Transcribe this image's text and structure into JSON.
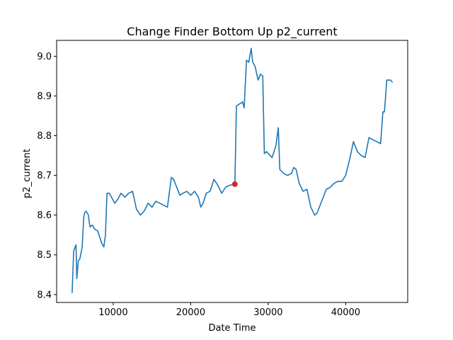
{
  "chart_data": {
    "type": "line",
    "title": "Change Finder Bottom Up p2_current",
    "xlabel": "Date Time",
    "ylabel": "p2_current",
    "xlim": [
      2700,
      48000
    ],
    "ylim": [
      8.38,
      9.04
    ],
    "xticks": [
      10000,
      20000,
      30000,
      40000
    ],
    "xtick_labels": [
      "10000",
      "20000",
      "30000",
      "40000"
    ],
    "yticks": [
      8.4,
      8.5,
      8.6,
      8.7,
      8.8,
      8.9,
      9.0
    ],
    "ytick_labels": [
      "8.4",
      "8.5",
      "8.6",
      "8.7",
      "8.8",
      "8.9",
      "9.0"
    ],
    "grid": false,
    "line_color": "#1f77b4",
    "marker_color": "#d62728",
    "series": [
      {
        "x": [
          4700,
          4900,
          5000,
          5200,
          5300,
          5500,
          5700,
          6000,
          6200,
          6300,
          6500,
          6800,
          7000,
          7300,
          7600,
          8000,
          8500,
          8800,
          9000,
          9200,
          9500,
          10200,
          10600,
          11000,
          11500,
          12000,
          12500,
          13000,
          13500,
          14000,
          14500,
          15000,
          15500,
          16000,
          16500,
          17000,
          17500,
          17800,
          18200,
          18600,
          19000,
          19500,
          20000,
          20500,
          21000,
          21300,
          21600,
          22000,
          22500,
          23000,
          23500,
          24000,
          24500,
          25000,
          25700,
          25900,
          26300,
          26700,
          26900,
          27200,
          27500,
          27800,
          28000,
          28300,
          28700,
          29000,
          29300,
          29500,
          29800,
          30000,
          30500,
          31000,
          31300,
          31500,
          32000,
          32500,
          33000,
          33300,
          33600,
          34000,
          34500,
          35000,
          35500,
          36000,
          36300,
          36600,
          37000,
          37500,
          38000,
          38500,
          39000,
          39500,
          40000,
          40500,
          41000,
          41500,
          42000,
          42500,
          43000,
          43500,
          44000,
          44500,
          44800,
          45000,
          45300,
          45800,
          46000
        ],
        "y": [
          8.405,
          8.51,
          8.515,
          8.525,
          8.44,
          8.485,
          8.49,
          8.52,
          8.595,
          8.605,
          8.61,
          8.6,
          8.57,
          8.575,
          8.565,
          8.56,
          8.53,
          8.52,
          8.55,
          8.655,
          8.655,
          8.63,
          8.64,
          8.655,
          8.645,
          8.655,
          8.66,
          8.615,
          8.6,
          8.61,
          8.63,
          8.62,
          8.635,
          8.63,
          8.625,
          8.62,
          8.695,
          8.69,
          8.67,
          8.65,
          8.655,
          8.66,
          8.65,
          8.66,
          8.645,
          8.62,
          8.63,
          8.655,
          8.66,
          8.69,
          8.675,
          8.655,
          8.67,
          8.675,
          8.678,
          8.875,
          8.88,
          8.885,
          8.87,
          8.99,
          8.985,
          9.02,
          8.985,
          8.975,
          8.94,
          8.955,
          8.95,
          8.755,
          8.76,
          8.755,
          8.745,
          8.775,
          8.82,
          8.715,
          8.705,
          8.7,
          8.705,
          8.72,
          8.715,
          8.68,
          8.66,
          8.665,
          8.62,
          8.6,
          8.605,
          8.62,
          8.64,
          8.665,
          8.67,
          8.68,
          8.685,
          8.685,
          8.7,
          8.74,
          8.785,
          8.76,
          8.75,
          8.745,
          8.795,
          8.79,
          8.785,
          8.78,
          8.86,
          8.86,
          8.94,
          8.94,
          8.935
        ]
      }
    ],
    "highlight_points": [
      {
        "x": 25700,
        "y": 8.678
      }
    ]
  }
}
